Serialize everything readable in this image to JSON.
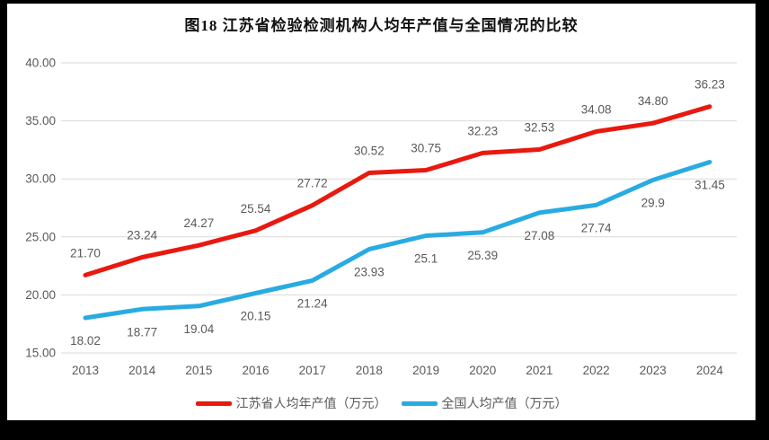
{
  "title": "图18  江苏省检验检测机构人均年产值与全国情况的比较",
  "colors": {
    "jiangsu_line": "#e8190f",
    "national_line": "#29abe2",
    "gridline": "#d9d9d9",
    "tick_text": "#595959",
    "frame": "#000000"
  },
  "chart_data": {
    "type": "line",
    "title": "图18  江苏省检验检测机构人均年产值与全国情况的比较",
    "categories": [
      "2013",
      "2014",
      "2015",
      "2016",
      "2017",
      "2018",
      "2019",
      "2020",
      "2021",
      "2022",
      "2023",
      "2024"
    ],
    "series": [
      {
        "name": "江苏省人均年产值（万元）",
        "color": "#e8190f",
        "values": [
          21.7,
          23.24,
          24.27,
          25.54,
          27.72,
          30.52,
          30.75,
          32.23,
          32.53,
          34.08,
          34.8,
          36.23
        ],
        "labels": [
          "21.70",
          "23.24",
          "24.27",
          "25.54",
          "27.72",
          "30.52",
          "30.75",
          "32.23",
          "32.53",
          "34.08",
          "34.80",
          "36.23"
        ]
      },
      {
        "name": "全国人均产值（万元）",
        "color": "#29abe2",
        "values": [
          18.02,
          18.77,
          19.04,
          20.15,
          21.24,
          23.93,
          25.1,
          25.39,
          27.08,
          27.74,
          29.9,
          31.45
        ],
        "labels": [
          "18.02",
          "18.77",
          "19.04",
          "20.15",
          "21.24",
          "23.93",
          "25.1",
          "25.39",
          "27.08",
          "27.74",
          "29.9",
          "31.45"
        ]
      }
    ],
    "xlabel": "",
    "ylabel": "",
    "ylim": [
      15,
      40
    ],
    "ytick_values": [
      40,
      35,
      30,
      25,
      20,
      15
    ],
    "ytick_labels": [
      "40.00",
      "35.00",
      "30.00",
      "25.00",
      "20.00",
      "15.00"
    ],
    "grid": true,
    "legend_position": "bottom"
  }
}
